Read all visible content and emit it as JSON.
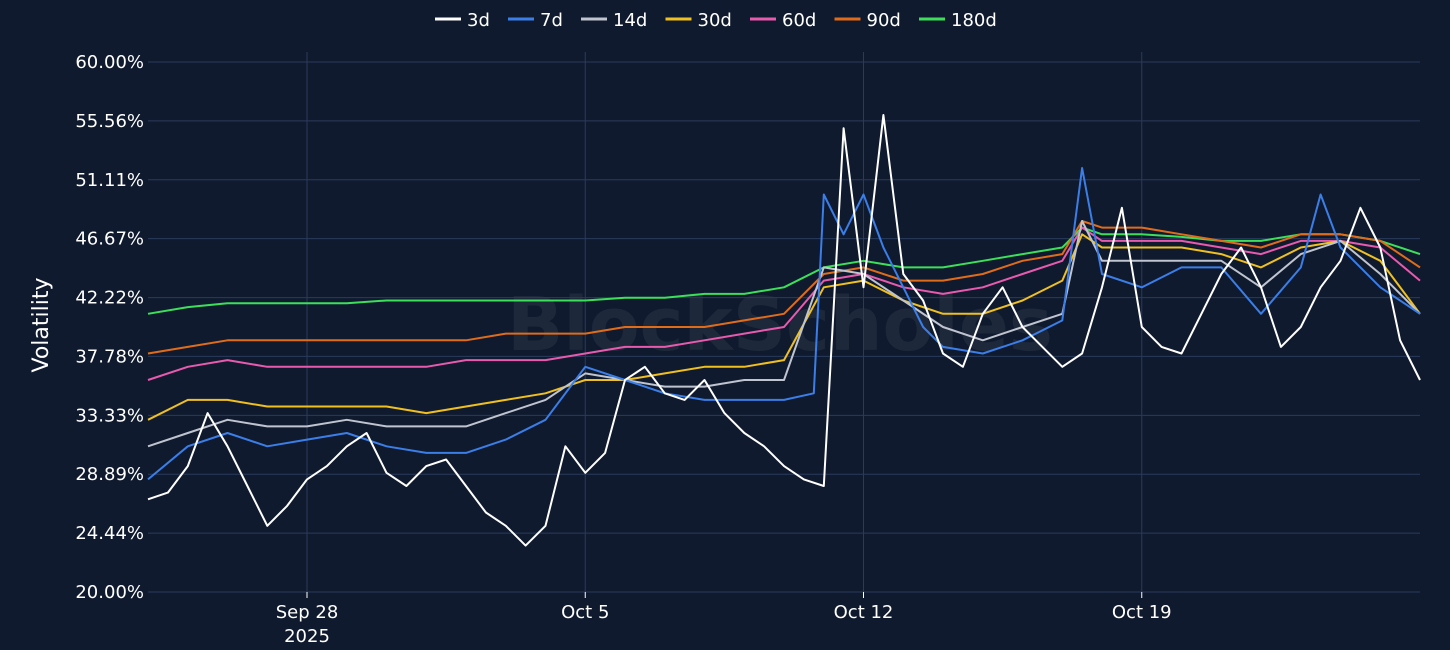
{
  "chart_data": {
    "type": "line",
    "title": "",
    "xlabel": "",
    "ylabel": "Volatility",
    "watermark": "BlockScholes",
    "x_range": [
      "2025-09-24",
      "2025-10-26"
    ],
    "ylim": [
      20.0,
      60.0
    ],
    "y_ticks": [
      "20.00%",
      "24.44%",
      "28.89%",
      "33.33%",
      "37.78%",
      "42.22%",
      "46.67%",
      "51.11%",
      "55.56%",
      "60.00%"
    ],
    "x_ticks": [
      {
        "date": "2025-09-28",
        "label": "Sep 28",
        "sublabel": "2025"
      },
      {
        "date": "2025-10-05",
        "label": "Oct 5",
        "sublabel": ""
      },
      {
        "date": "2025-10-12",
        "label": "Oct 12",
        "sublabel": ""
      },
      {
        "date": "2025-10-19",
        "label": "Oct 19",
        "sublabel": ""
      }
    ],
    "grid": true,
    "legend_position": "top-center",
    "series": [
      {
        "name": "3d",
        "color": "#ffffff",
        "x": [
          "2025-09-24T00:00",
          "2025-09-24T12:00",
          "2025-09-25T00:00",
          "2025-09-25T12:00",
          "2025-09-26T00:00",
          "2025-09-26T12:00",
          "2025-09-27T00:00",
          "2025-09-27T12:00",
          "2025-09-28T00:00",
          "2025-09-28T12:00",
          "2025-09-29T00:00",
          "2025-09-29T12:00",
          "2025-09-30T00:00",
          "2025-09-30T12:00",
          "2025-10-01T00:00",
          "2025-10-01T12:00",
          "2025-10-02T00:00",
          "2025-10-02T12:00",
          "2025-10-03T00:00",
          "2025-10-03T12:00",
          "2025-10-04T00:00",
          "2025-10-04T12:00",
          "2025-10-05T00:00",
          "2025-10-05T12:00",
          "2025-10-06T00:00",
          "2025-10-06T12:00",
          "2025-10-07T00:00",
          "2025-10-07T12:00",
          "2025-10-08T00:00",
          "2025-10-08T12:00",
          "2025-10-09T00:00",
          "2025-10-09T12:00",
          "2025-10-10T00:00",
          "2025-10-10T12:00",
          "2025-10-11T00:00",
          "2025-10-11T12:00",
          "2025-10-12T00:00",
          "2025-10-12T12:00",
          "2025-10-13T00:00",
          "2025-10-13T12:00",
          "2025-10-14T00:00",
          "2025-10-14T12:00",
          "2025-10-15T00:00",
          "2025-10-15T12:00",
          "2025-10-16T00:00",
          "2025-10-16T12:00",
          "2025-10-17T00:00",
          "2025-10-17T12:00",
          "2025-10-18T00:00",
          "2025-10-18T12:00",
          "2025-10-19T00:00",
          "2025-10-19T12:00",
          "2025-10-20T00:00",
          "2025-10-20T12:00",
          "2025-10-21T00:00",
          "2025-10-21T12:00",
          "2025-10-22T00:00",
          "2025-10-22T12:00",
          "2025-10-23T00:00",
          "2025-10-23T12:00",
          "2025-10-24T00:00",
          "2025-10-24T12:00",
          "2025-10-25T00:00",
          "2025-10-25T12:00",
          "2025-10-26T00:00"
        ],
        "values": [
          27.0,
          27.5,
          29.5,
          33.5,
          31.0,
          28.0,
          25.0,
          26.5,
          28.5,
          29.5,
          31.0,
          32.0,
          29.0,
          28.0,
          29.5,
          30.0,
          28.0,
          26.0,
          25.0,
          23.5,
          25.0,
          31.0,
          29.0,
          30.5,
          36.0,
          37.0,
          35.0,
          34.5,
          36.0,
          33.5,
          32.0,
          31.0,
          29.5,
          28.5,
          28.0,
          55.0,
          43.0,
          56.0,
          44.0,
          42.0,
          38.0,
          37.0,
          41.0,
          43.0,
          40.0,
          38.5,
          37.0,
          38.0,
          43.0,
          49.0,
          40.0,
          38.5,
          38.0,
          41.0,
          44.0,
          46.0,
          43.0,
          38.5,
          40.0,
          43.0,
          45.0,
          49.0,
          46.0,
          39.0,
          36.0
        ]
      },
      {
        "name": "7d",
        "color": "#3b7ee8",
        "x": [
          "2025-09-24T00:00",
          "2025-09-25T00:00",
          "2025-09-26T00:00",
          "2025-09-27T00:00",
          "2025-09-28T00:00",
          "2025-09-29T00:00",
          "2025-09-30T00:00",
          "2025-10-01T00:00",
          "2025-10-02T00:00",
          "2025-10-03T00:00",
          "2025-10-04T00:00",
          "2025-10-05T00:00",
          "2025-10-06T00:00",
          "2025-10-07T00:00",
          "2025-10-08T00:00",
          "2025-10-09T00:00",
          "2025-10-10T00:00",
          "2025-10-10T18:00",
          "2025-10-11T00:00",
          "2025-10-11T12:00",
          "2025-10-12T00:00",
          "2025-10-12T12:00",
          "2025-10-13T00:00",
          "2025-10-13T12:00",
          "2025-10-14T00:00",
          "2025-10-15T00:00",
          "2025-10-16T00:00",
          "2025-10-17T00:00",
          "2025-10-17T12:00",
          "2025-10-18T00:00",
          "2025-10-19T00:00",
          "2025-10-20T00:00",
          "2025-10-21T00:00",
          "2025-10-22T00:00",
          "2025-10-23T00:00",
          "2025-10-23T12:00",
          "2025-10-24T00:00",
          "2025-10-25T00:00",
          "2025-10-26T00:00"
        ],
        "values": [
          28.5,
          31.0,
          32.0,
          31.0,
          31.5,
          32.0,
          31.0,
          30.5,
          30.5,
          31.5,
          33.0,
          37.0,
          36.0,
          35.0,
          34.5,
          34.5,
          34.5,
          35.0,
          50.0,
          47.0,
          50.0,
          46.0,
          43.0,
          40.0,
          38.5,
          38.0,
          39.0,
          40.5,
          52.0,
          44.0,
          43.0,
          44.5,
          44.5,
          41.0,
          44.5,
          50.0,
          46.0,
          43.0,
          41.0
        ]
      },
      {
        "name": "14d",
        "color": "#bfc4cf",
        "x": [
          "2025-09-24T00:00",
          "2025-09-25T00:00",
          "2025-09-26T00:00",
          "2025-09-27T00:00",
          "2025-09-28T00:00",
          "2025-09-29T00:00",
          "2025-09-30T00:00",
          "2025-10-01T00:00",
          "2025-10-02T00:00",
          "2025-10-03T00:00",
          "2025-10-04T00:00",
          "2025-10-05T00:00",
          "2025-10-06T00:00",
          "2025-10-07T00:00",
          "2025-10-08T00:00",
          "2025-10-09T00:00",
          "2025-10-10T00:00",
          "2025-10-11T00:00",
          "2025-10-12T00:00",
          "2025-10-13T00:00",
          "2025-10-14T00:00",
          "2025-10-15T00:00",
          "2025-10-16T00:00",
          "2025-10-17T00:00",
          "2025-10-17T12:00",
          "2025-10-18T00:00",
          "2025-10-19T00:00",
          "2025-10-20T00:00",
          "2025-10-21T00:00",
          "2025-10-22T00:00",
          "2025-10-23T00:00",
          "2025-10-24T00:00",
          "2025-10-25T00:00",
          "2025-10-26T00:00"
        ],
        "values": [
          31.0,
          32.0,
          33.0,
          32.5,
          32.5,
          33.0,
          32.5,
          32.5,
          32.5,
          33.5,
          34.5,
          36.5,
          36.0,
          35.5,
          35.5,
          36.0,
          36.0,
          44.5,
          44.0,
          42.0,
          40.0,
          39.0,
          40.0,
          41.0,
          48.0,
          45.0,
          45.0,
          45.0,
          45.0,
          43.0,
          45.5,
          46.5,
          44.0,
          41.0
        ]
      },
      {
        "name": "30d",
        "color": "#f0c020",
        "x": [
          "2025-09-24T00:00",
          "2025-09-25T00:00",
          "2025-09-26T00:00",
          "2025-09-27T00:00",
          "2025-09-28T00:00",
          "2025-09-29T00:00",
          "2025-09-30T00:00",
          "2025-10-01T00:00",
          "2025-10-02T00:00",
          "2025-10-03T00:00",
          "2025-10-04T00:00",
          "2025-10-05T00:00",
          "2025-10-06T00:00",
          "2025-10-07T00:00",
          "2025-10-08T00:00",
          "2025-10-09T00:00",
          "2025-10-10T00:00",
          "2025-10-11T00:00",
          "2025-10-12T00:00",
          "2025-10-13T00:00",
          "2025-10-14T00:00",
          "2025-10-15T00:00",
          "2025-10-16T00:00",
          "2025-10-17T00:00",
          "2025-10-17T12:00",
          "2025-10-18T00:00",
          "2025-10-19T00:00",
          "2025-10-20T00:00",
          "2025-10-21T00:00",
          "2025-10-22T00:00",
          "2025-10-23T00:00",
          "2025-10-24T00:00",
          "2025-10-25T00:00",
          "2025-10-26T00:00"
        ],
        "values": [
          33.0,
          34.5,
          34.5,
          34.0,
          34.0,
          34.0,
          34.0,
          33.5,
          34.0,
          34.5,
          35.0,
          36.0,
          36.0,
          36.5,
          37.0,
          37.0,
          37.5,
          43.0,
          43.5,
          42.0,
          41.0,
          41.0,
          42.0,
          43.5,
          47.0,
          46.0,
          46.0,
          46.0,
          45.5,
          44.5,
          46.0,
          46.5,
          45.0,
          41.0
        ]
      },
      {
        "name": "60d",
        "color": "#e85aae",
        "x": [
          "2025-09-24T00:00",
          "2025-09-25T00:00",
          "2025-09-26T00:00",
          "2025-09-27T00:00",
          "2025-09-28T00:00",
          "2025-09-29T00:00",
          "2025-09-30T00:00",
          "2025-10-01T00:00",
          "2025-10-02T00:00",
          "2025-10-03T00:00",
          "2025-10-04T00:00",
          "2025-10-05T00:00",
          "2025-10-06T00:00",
          "2025-10-07T00:00",
          "2025-10-08T00:00",
          "2025-10-09T00:00",
          "2025-10-10T00:00",
          "2025-10-11T00:00",
          "2025-10-12T00:00",
          "2025-10-13T00:00",
          "2025-10-14T00:00",
          "2025-10-15T00:00",
          "2025-10-16T00:00",
          "2025-10-17T00:00",
          "2025-10-17T12:00",
          "2025-10-18T00:00",
          "2025-10-19T00:00",
          "2025-10-20T00:00",
          "2025-10-21T00:00",
          "2025-10-22T00:00",
          "2025-10-23T00:00",
          "2025-10-24T00:00",
          "2025-10-25T00:00",
          "2025-10-26T00:00"
        ],
        "values": [
          36.0,
          37.0,
          37.5,
          37.0,
          37.0,
          37.0,
          37.0,
          37.0,
          37.5,
          37.5,
          37.5,
          38.0,
          38.5,
          38.5,
          39.0,
          39.5,
          40.0,
          43.5,
          44.0,
          43.0,
          42.5,
          43.0,
          44.0,
          45.0,
          47.5,
          46.5,
          46.5,
          46.5,
          46.0,
          45.5,
          46.5,
          46.5,
          46.0,
          43.5
        ]
      },
      {
        "name": "90d",
        "color": "#e06c1a",
        "x": [
          "2025-09-24T00:00",
          "2025-09-25T00:00",
          "2025-09-26T00:00",
          "2025-09-27T00:00",
          "2025-09-28T00:00",
          "2025-09-29T00:00",
          "2025-09-30T00:00",
          "2025-10-01T00:00",
          "2025-10-02T00:00",
          "2025-10-03T00:00",
          "2025-10-04T00:00",
          "2025-10-05T00:00",
          "2025-10-06T00:00",
          "2025-10-07T00:00",
          "2025-10-08T00:00",
          "2025-10-09T00:00",
          "2025-10-10T00:00",
          "2025-10-11T00:00",
          "2025-10-12T00:00",
          "2025-10-13T00:00",
          "2025-10-14T00:00",
          "2025-10-15T00:00",
          "2025-10-16T00:00",
          "2025-10-17T00:00",
          "2025-10-17T12:00",
          "2025-10-18T00:00",
          "2025-10-19T00:00",
          "2025-10-20T00:00",
          "2025-10-21T00:00",
          "2025-10-22T00:00",
          "2025-10-23T00:00",
          "2025-10-24T00:00",
          "2025-10-25T00:00",
          "2025-10-26T00:00"
        ],
        "values": [
          38.0,
          38.5,
          39.0,
          39.0,
          39.0,
          39.0,
          39.0,
          39.0,
          39.0,
          39.5,
          39.5,
          39.5,
          40.0,
          40.0,
          40.0,
          40.5,
          41.0,
          44.0,
          44.5,
          43.5,
          43.5,
          44.0,
          45.0,
          45.5,
          48.0,
          47.5,
          47.5,
          47.0,
          46.5,
          46.0,
          47.0,
          47.0,
          46.5,
          44.5
        ]
      },
      {
        "name": "180d",
        "color": "#3ddf5a",
        "x": [
          "2025-09-24T00:00",
          "2025-09-25T00:00",
          "2025-09-26T00:00",
          "2025-09-27T00:00",
          "2025-09-28T00:00",
          "2025-09-29T00:00",
          "2025-09-30T00:00",
          "2025-10-01T00:00",
          "2025-10-02T00:00",
          "2025-10-03T00:00",
          "2025-10-04T00:00",
          "2025-10-05T00:00",
          "2025-10-06T00:00",
          "2025-10-07T00:00",
          "2025-10-08T00:00",
          "2025-10-09T00:00",
          "2025-10-10T00:00",
          "2025-10-11T00:00",
          "2025-10-12T00:00",
          "2025-10-13T00:00",
          "2025-10-14T00:00",
          "2025-10-15T00:00",
          "2025-10-16T00:00",
          "2025-10-17T00:00",
          "2025-10-17T12:00",
          "2025-10-18T00:00",
          "2025-10-19T00:00",
          "2025-10-20T00:00",
          "2025-10-21T00:00",
          "2025-10-22T00:00",
          "2025-10-23T00:00",
          "2025-10-24T00:00",
          "2025-10-25T00:00",
          "2025-10-26T00:00"
        ],
        "values": [
          41.0,
          41.5,
          41.8,
          41.8,
          41.8,
          41.8,
          42.0,
          42.0,
          42.0,
          42.0,
          42.0,
          42.0,
          42.2,
          42.2,
          42.5,
          42.5,
          43.0,
          44.5,
          45.0,
          44.5,
          44.5,
          45.0,
          45.5,
          46.0,
          47.5,
          47.0,
          47.0,
          46.8,
          46.5,
          46.5,
          47.0,
          47.0,
          46.5,
          45.5
        ]
      }
    ]
  }
}
